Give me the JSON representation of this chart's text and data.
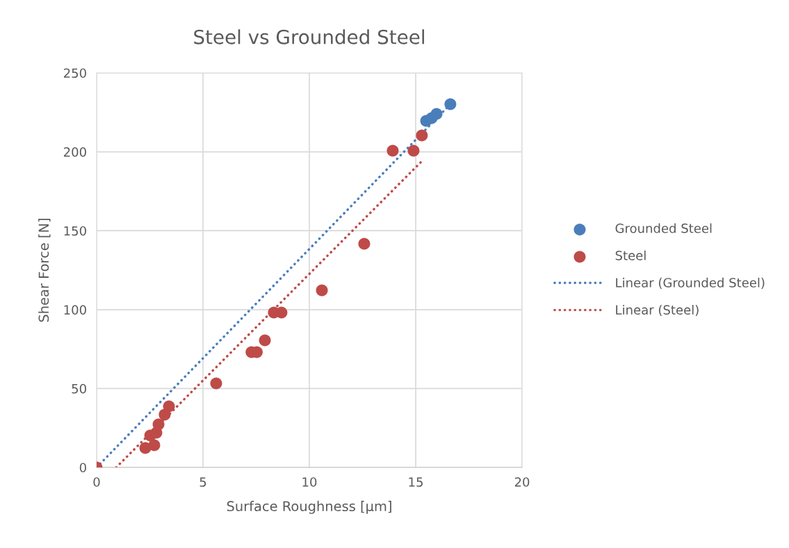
{
  "chart_data": {
    "type": "scatter",
    "title": "Steel vs Grounded Steel",
    "xlabel": "Surface Roughness [µm]",
    "ylabel": "Shear Force [N]",
    "xlim": [
      0,
      20
    ],
    "xticks": [
      0,
      5,
      10,
      15,
      20
    ],
    "ylim": [
      0,
      250
    ],
    "yticks": [
      0,
      50,
      100,
      150,
      200,
      250
    ],
    "grid": true,
    "legend": "right",
    "series": [
      {
        "name": "Grounded Steel",
        "marker": "circle",
        "color": "#4a7ebb",
        "x": [
          15.49,
          15.75,
          15.98,
          16.63
        ],
        "values": [
          219.6,
          221.4,
          224.0,
          230.2
        ]
      },
      {
        "name": "Steel",
        "marker": "circle",
        "color": "#be4b48",
        "x": [
          0,
          2.29,
          2.52,
          2.71,
          2.81,
          2.91,
          3.2,
          3.4,
          5.62,
          7.28,
          7.53,
          7.91,
          8.33,
          8.69,
          10.59,
          12.58,
          13.92,
          14.9,
          15.29
        ],
        "values": [
          0,
          12.3,
          20.2,
          14.1,
          22.0,
          27.3,
          33.5,
          38.7,
          53.3,
          73.1,
          73.1,
          80.5,
          98.2,
          98.2,
          112.2,
          141.7,
          200.7,
          200.7,
          210.4
        ]
      },
      {
        "name": "Linear (Grounded Steel)",
        "type": "line",
        "line_style": "dotted",
        "color": "#4a7ebb",
        "x": [
          0,
          16.63
        ],
        "values": [
          0,
          230.2
        ]
      },
      {
        "name": "Linear (Steel)",
        "type": "line",
        "line_style": "dotted",
        "color": "#be4b48",
        "x": [
          0.92,
          15.29
        ],
        "values": [
          0,
          194.1
        ]
      }
    ]
  }
}
